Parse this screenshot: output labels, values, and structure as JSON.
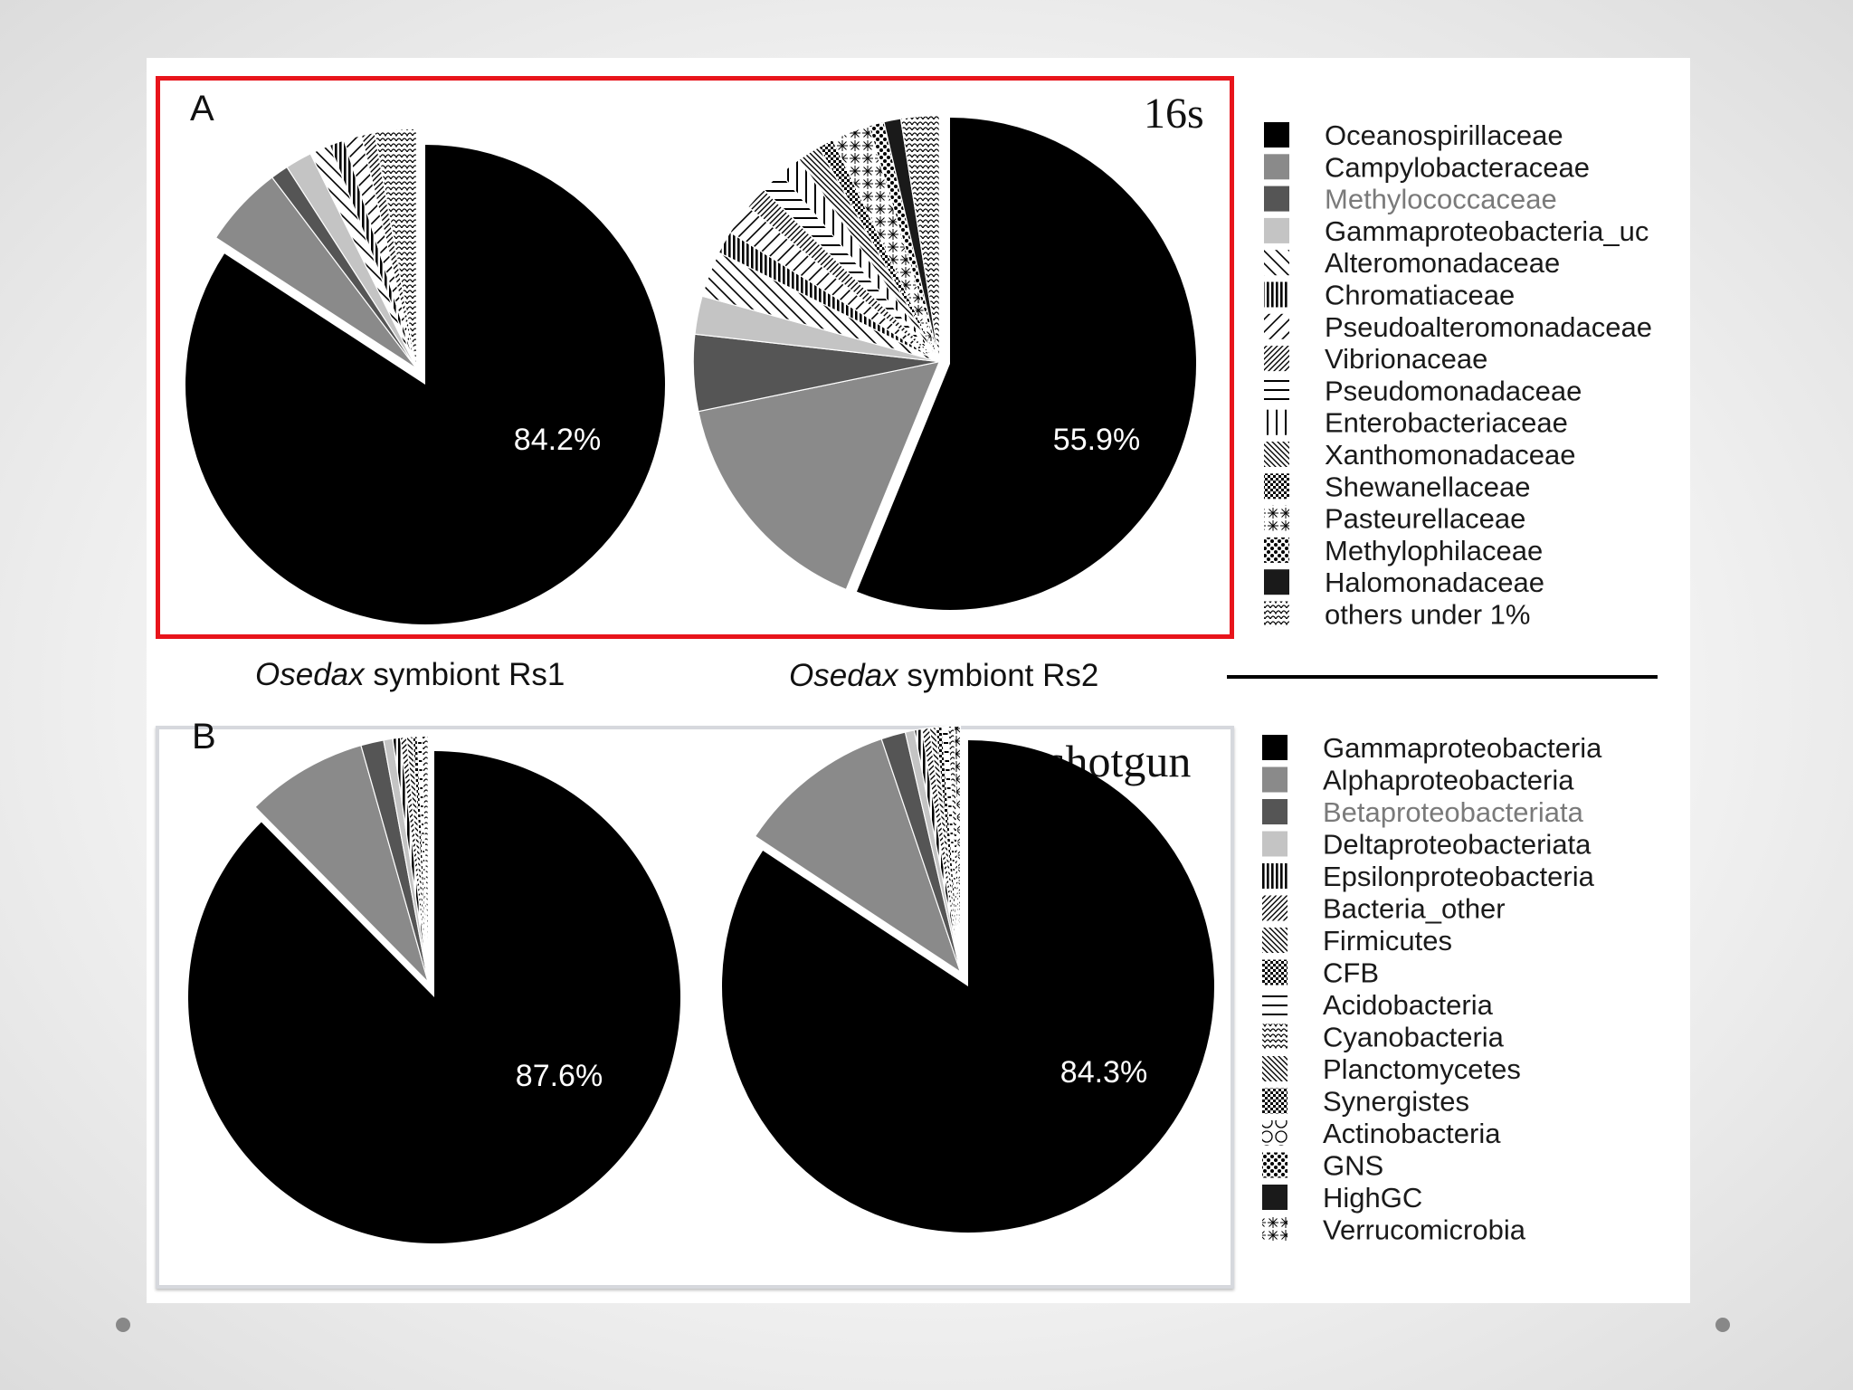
{
  "chart_data": [
    {
      "type": "pie",
      "panel": "A",
      "method": "16s",
      "caption_genus": "Osedax",
      "caption_rest": " symbiont Rs1",
      "highlight_label": "84.2%",
      "slices": [
        {
          "name": "Oceanospirillaceae",
          "value": 84.2
        },
        {
          "name": "Campylobacteraceae",
          "value": 5.5
        },
        {
          "name": "Methylococcaceae",
          "value": 1.2
        },
        {
          "name": "Gammaproteobacteria_uc",
          "value": 1.8
        },
        {
          "name": "Alteromonadaceae",
          "value": 1.4
        },
        {
          "name": "Chromatiaceae",
          "value": 1.0
        },
        {
          "name": "Pseudoalteromonadaceae",
          "value": 1.2
        },
        {
          "name": "Vibrionaceae",
          "value": 0.9
        },
        {
          "name": "others under 1%",
          "value": 2.8
        }
      ]
    },
    {
      "type": "pie",
      "panel": "A",
      "method": "16s",
      "caption_genus": "Osedax",
      "caption_rest": " symbiont Rs2",
      "highlight_label": "55.9%",
      "slices": [
        {
          "name": "Oceanospirillaceae",
          "value": 55.9
        },
        {
          "name": "Campylobacteraceae",
          "value": 15.5
        },
        {
          "name": "Methylococcaceae",
          "value": 5.0
        },
        {
          "name": "Gammaproteobacteria_uc",
          "value": 2.5
        },
        {
          "name": "Alteromonadaceae",
          "value": 3.0
        },
        {
          "name": "Chromatiaceae",
          "value": 1.5
        },
        {
          "name": "Pseudoalteromonadaceae",
          "value": 2.0
        },
        {
          "name": "Vibrionaceae",
          "value": 1.5
        },
        {
          "name": "Pseudomonadaceae",
          "value": 1.5
        },
        {
          "name": "Enterobacteriaceae",
          "value": 1.5
        },
        {
          "name": "Xanthomonadaceae",
          "value": 1.5
        },
        {
          "name": "Shewanellaceae",
          "value": 1.0
        },
        {
          "name": "Pasteurellaceae",
          "value": 2.5
        },
        {
          "name": "Methylophilaceae",
          "value": 1.0
        },
        {
          "name": "Halomonadaceae",
          "value": 1.1
        },
        {
          "name": "others under 1%",
          "value": 2.5
        }
      ]
    },
    {
      "type": "pie",
      "panel": "B",
      "method": "shotgun",
      "highlight_label": "87.6%",
      "slices": [
        {
          "name": "Gammaproteobacteria",
          "value": 87.6
        },
        {
          "name": "Alphaproteobacteria",
          "value": 8.0
        },
        {
          "name": "Betaproteobacteriata",
          "value": 1.5
        },
        {
          "name": "Deltaproteobacteriata",
          "value": 0.6
        },
        {
          "name": "Epsilonproteobacteria",
          "value": 0.5
        },
        {
          "name": "Bacteria_other",
          "value": 0.4
        },
        {
          "name": "Firmicutes",
          "value": 0.4
        },
        {
          "name": "CFB",
          "value": 0.3
        },
        {
          "name": "Acidobacteria",
          "value": 0.3
        },
        {
          "name": "Cyanobacteria",
          "value": 0.4
        }
      ]
    },
    {
      "type": "pie",
      "panel": "B",
      "method": "shotgun",
      "highlight_label": "84.3%",
      "slices": [
        {
          "name": "Gammaproteobacteria",
          "value": 84.3
        },
        {
          "name": "Alphaproteobacteria",
          "value": 10.5
        },
        {
          "name": "Betaproteobacteriata",
          "value": 1.6
        },
        {
          "name": "Deltaproteobacteriata",
          "value": 0.6
        },
        {
          "name": "Epsilonproteobacteria",
          "value": 0.5
        },
        {
          "name": "Bacteria_other",
          "value": 0.5
        },
        {
          "name": "Firmicutes",
          "value": 0.4
        },
        {
          "name": "CFB",
          "value": 0.4
        },
        {
          "name": "Acidobacteria",
          "value": 0.4
        },
        {
          "name": "Cyanobacteria",
          "value": 0.4
        },
        {
          "name": "Verrucomicrobia",
          "value": 0.4
        }
      ]
    }
  ],
  "panels": {
    "a": {
      "letter": "A",
      "method": "16s"
    },
    "b": {
      "letter": "B",
      "method": "shotgun"
    }
  },
  "captions": {
    "rs1": {
      "genus": "Osedax",
      "rest": " symbiont Rs1"
    },
    "rs2": {
      "genus": "Osedax",
      "rest": " symbiont Rs2"
    }
  },
  "legend_a": [
    {
      "label": "Oceanospirillaceae",
      "pattern": "black"
    },
    {
      "label": "Campylobacteraceae",
      "pattern": "grey"
    },
    {
      "label": "Methylococcaceae",
      "pattern": "darkgrey",
      "muted": true
    },
    {
      "label": "Gammaproteobacteria_uc",
      "pattern": "lightgrey"
    },
    {
      "label": "Alteromonadaceae",
      "pattern": "diag-back-sparse"
    },
    {
      "label": "Chromatiaceae",
      "pattern": "vert-dense"
    },
    {
      "label": "Pseudoalteromonadaceae",
      "pattern": "diag-fwd-sparse"
    },
    {
      "label": "Vibrionaceae",
      "pattern": "diag-fwd-dense"
    },
    {
      "label": "Pseudomonadaceae",
      "pattern": "horiz"
    },
    {
      "label": "Enterobacteriaceae",
      "pattern": "vert-sparse"
    },
    {
      "label": "Xanthomonadaceae",
      "pattern": "diag-back-dense"
    },
    {
      "label": "Shewanellaceae",
      "pattern": "checker"
    },
    {
      "label": "Pasteurellaceae",
      "pattern": "star"
    },
    {
      "label": "Methylophilaceae",
      "pattern": "dots-dense"
    },
    {
      "label": "Halomonadaceae",
      "pattern": "nearblack"
    },
    {
      "label": "others under 1%",
      "pattern": "scallop"
    }
  ],
  "legend_b": [
    {
      "label": "Gammaproteobacteria",
      "pattern": "black"
    },
    {
      "label": "Alphaproteobacteria",
      "pattern": "grey"
    },
    {
      "label": "Betaproteobacteriata",
      "pattern": "darkgrey",
      "muted": true
    },
    {
      "label": "Deltaproteobacteriata",
      "pattern": "lightgrey"
    },
    {
      "label": "Epsilonproteobacteria",
      "pattern": "vert-dense"
    },
    {
      "label": "Bacteria_other",
      "pattern": "diag-fwd-dense"
    },
    {
      "label": "Firmicutes",
      "pattern": "diag-back-dense"
    },
    {
      "label": "CFB",
      "pattern": "checker"
    },
    {
      "label": "Acidobacteria",
      "pattern": "horiz"
    },
    {
      "label": "Cyanobacteria",
      "pattern": "scallop"
    },
    {
      "label": "Planctomycetes",
      "pattern": "diag-back-dense"
    },
    {
      "label": "Synergistes",
      "pattern": "checker"
    },
    {
      "label": "Actinobacteria",
      "pattern": "circles"
    },
    {
      "label": "GNS",
      "pattern": "dots-dense"
    },
    {
      "label": "HighGC",
      "pattern": "nearblack"
    },
    {
      "label": "Verrucomicrobia",
      "pattern": "star"
    }
  ],
  "colors": {
    "frame_red": "#e8141b",
    "frame_grey": "#d6d8dd",
    "black": "#000000",
    "grey": "#8a8a8a",
    "darkgrey": "#555555",
    "lightgrey": "#c4c4c4",
    "muted_text": "#7a7a7a"
  }
}
